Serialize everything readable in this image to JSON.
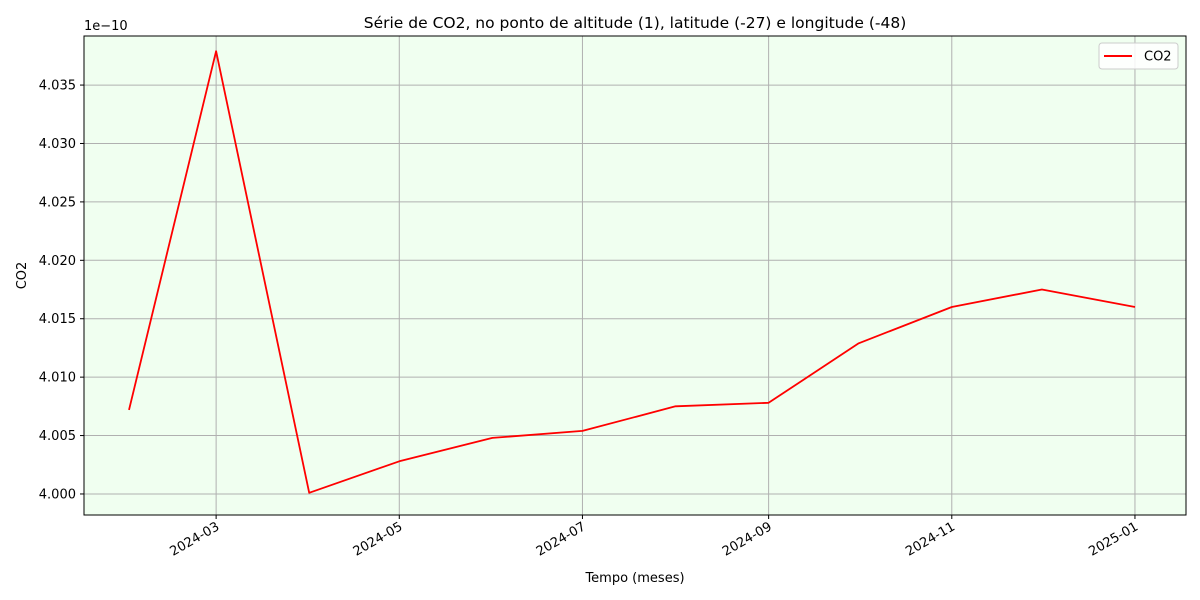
{
  "chart_data": {
    "type": "line",
    "title": "Série de CO2, no ponto de altitude (1), latitude (-27) e longitude (-48)",
    "xlabel": "Tempo (meses)",
    "ylabel": "CO2",
    "y_offset_text": "1e−10",
    "y_scale_exponent": -10,
    "xlim": [
      "2024-01-17",
      "2025-01-18"
    ],
    "ylim": [
      3.9982,
      4.0392
    ],
    "x_ticks": [
      "2024-03",
      "2024-05",
      "2024-07",
      "2024-09",
      "2024-11",
      "2025-01"
    ],
    "y_ticks": [
      "4.000",
      "4.005",
      "4.010",
      "4.015",
      "4.020",
      "4.025",
      "4.030",
      "4.035"
    ],
    "grid": true,
    "legend_position": "top-right",
    "colors": {
      "plot_background": "#f0fff0",
      "series": "#ff0000",
      "grid": "#b0b0b0"
    },
    "series": [
      {
        "name": "CO2",
        "color": "#ff0000",
        "x": [
          "2024-02-01",
          "2024-03-01",
          "2024-04-01",
          "2024-05-01",
          "2024-06-01",
          "2024-07-01",
          "2024-08-01",
          "2024-09-01",
          "2024-10-01",
          "2024-11-01",
          "2024-12-01",
          "2025-01-01"
        ],
        "y": [
          4.0072,
          4.0379,
          4.0001,
          4.0028,
          4.0048,
          4.0054,
          4.0075,
          4.0078,
          4.0129,
          4.016,
          4.0175,
          4.016
        ]
      }
    ]
  }
}
